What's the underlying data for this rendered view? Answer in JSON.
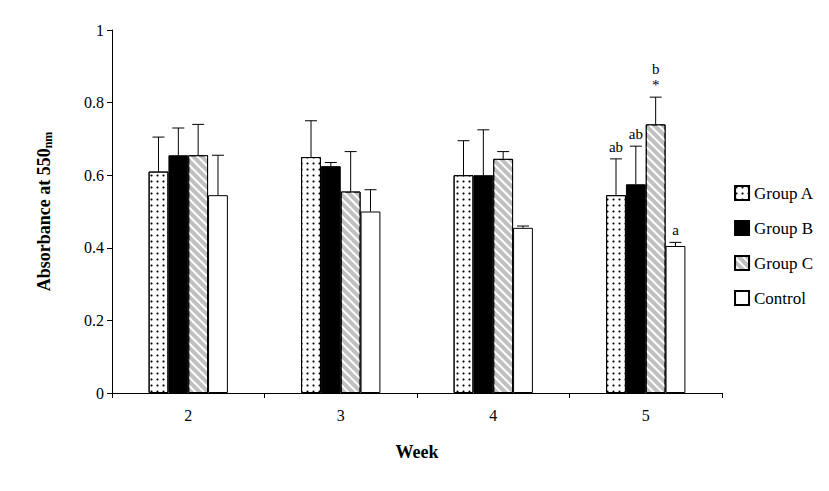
{
  "chart_data": {
    "type": "bar",
    "x_label": "Week",
    "y_label": {
      "text": "Absorbance at 550",
      "subscript": "nm"
    },
    "categories": [
      "2",
      "3",
      "4",
      "5"
    ],
    "series": [
      {
        "name": "Group A",
        "color": "#ffffff",
        "values": [
          0.61,
          0.65,
          0.6,
          0.545
        ],
        "errors": [
          0.095,
          0.1,
          0.095,
          0.1
        ],
        "annotations": [
          null,
          null,
          null,
          [
            "ab"
          ]
        ]
      },
      {
        "name": "Group B",
        "color": "#000000",
        "values": [
          0.655,
          0.625,
          0.6,
          0.575
        ],
        "errors": [
          0.075,
          0.01,
          0.125,
          0.105
        ],
        "annotations": [
          null,
          null,
          null,
          [
            "ab"
          ]
        ]
      },
      {
        "name": "Group C",
        "color": "#c0c0c0",
        "values": [
          0.655,
          0.555,
          0.645,
          0.74
        ],
        "errors": [
          0.085,
          0.11,
          0.02,
          0.075
        ],
        "annotations": [
          null,
          null,
          null,
          [
            "b",
            "*"
          ]
        ]
      },
      {
        "name": "Control",
        "color": "#ffffff",
        "values": [
          0.545,
          0.5,
          0.455,
          0.405
        ],
        "errors": [
          0.11,
          0.06,
          0.005,
          0.01
        ],
        "annotations": [
          null,
          null,
          null,
          [
            "a"
          ]
        ]
      }
    ],
    "ylim": [
      0,
      1
    ],
    "yticks": [
      0,
      0.2,
      0.4,
      0.6,
      0.8,
      1
    ],
    "grid": false,
    "legend": "right"
  }
}
